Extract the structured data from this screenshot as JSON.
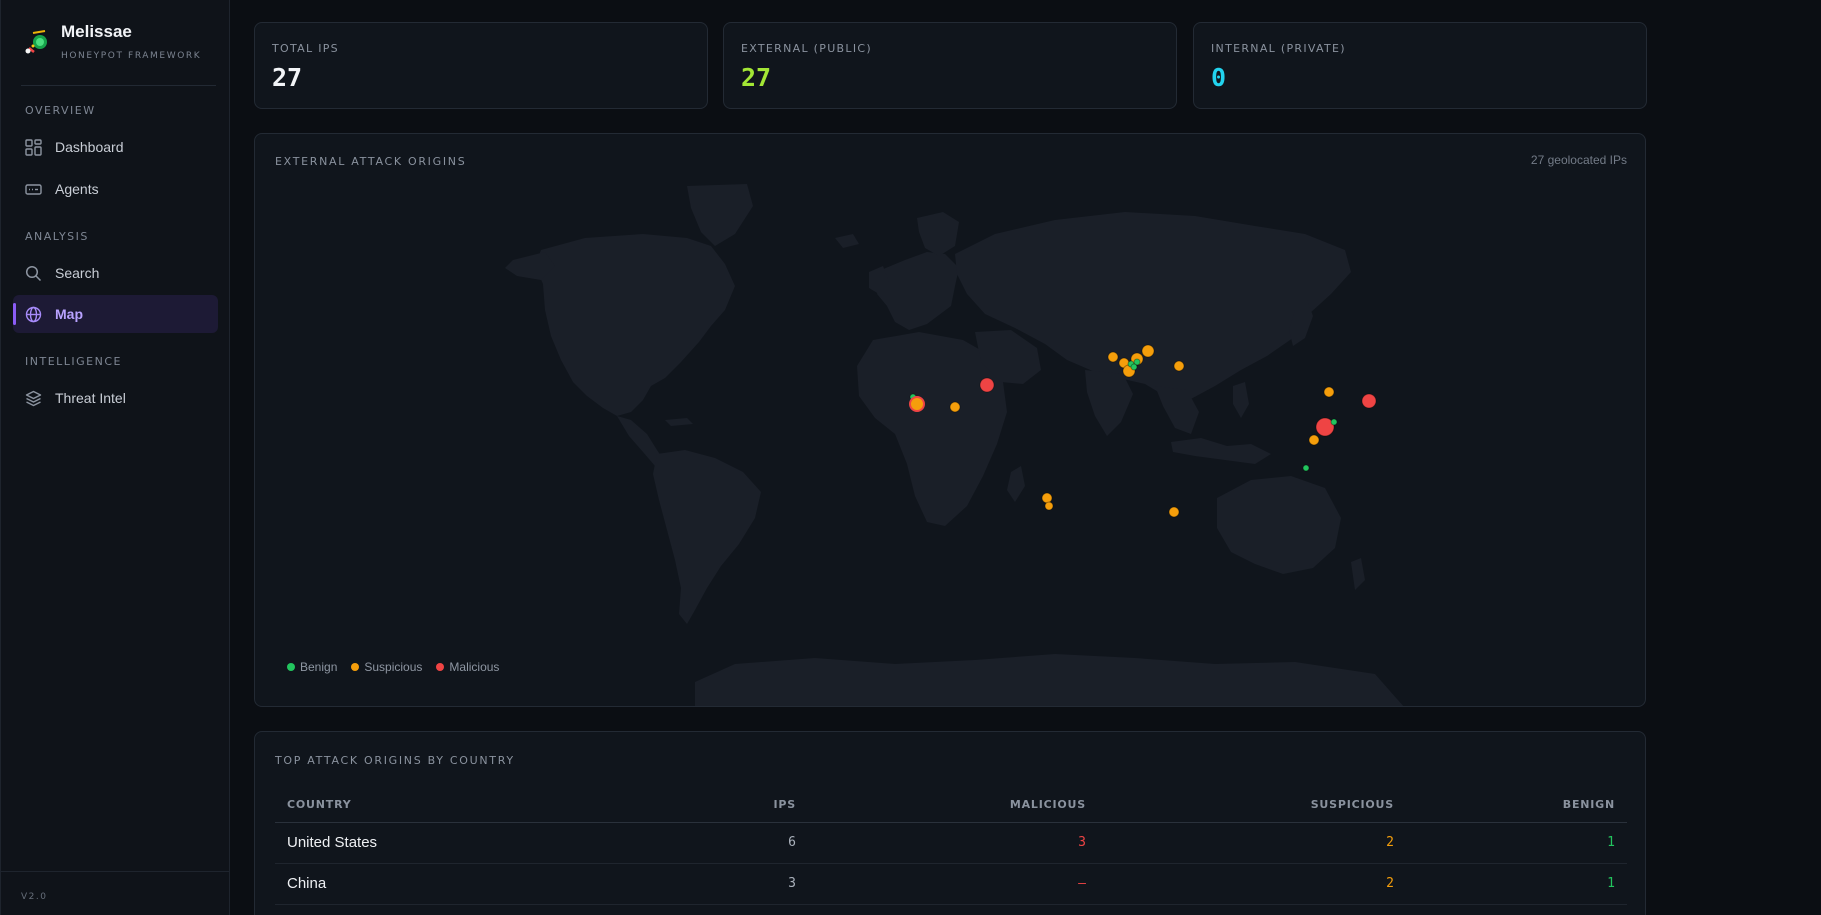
{
  "brand": {
    "name": "Melissae",
    "tagline": "HONEYPOT FRAMEWORK"
  },
  "sidebar": {
    "sections": [
      {
        "label": "OVERVIEW"
      },
      {
        "label": "ANALYSIS"
      },
      {
        "label": "INTELLIGENCE"
      }
    ],
    "items": [
      {
        "label": "Dashboard",
        "icon": "dashboard-icon"
      },
      {
        "label": "Agents",
        "icon": "agents-icon"
      },
      {
        "label": "Search",
        "icon": "search-icon"
      },
      {
        "label": "Map",
        "icon": "globe-icon",
        "active": true
      },
      {
        "label": "Threat Intel",
        "icon": "layers-icon"
      }
    ],
    "version": "V2.0"
  },
  "stats": [
    {
      "label": "TOTAL IPS",
      "value": "27",
      "color": "#f2f4f7"
    },
    {
      "label": "EXTERNAL (PUBLIC)",
      "value": "27",
      "color": "#a3e635"
    },
    {
      "label": "INTERNAL (PRIVATE)",
      "value": "0",
      "color": "#22d3ee"
    }
  ],
  "map": {
    "title": "EXTERNAL ATTACK ORIGINS",
    "geolocated": "27 geolocated IPs",
    "legend": [
      {
        "label": "Benign",
        "color": "#22c55e"
      },
      {
        "label": "Suspicious",
        "color": "#f59e0b"
      },
      {
        "label": "Malicious",
        "color": "#ef4444"
      }
    ]
  },
  "countries": {
    "title": "TOP ATTACK ORIGINS BY COUNTRY",
    "headers": [
      "COUNTRY",
      "IPS",
      "MALICIOUS",
      "SUSPICIOUS",
      "BENIGN"
    ],
    "rows": [
      {
        "country": "United States",
        "ips": "6",
        "malicious": "3",
        "suspicious": "2",
        "benign": "1"
      },
      {
        "country": "China",
        "ips": "3",
        "malicious": "–",
        "suspicious": "2",
        "benign": "1"
      }
    ],
    "colors": {
      "malicious": "#ef4444",
      "suspicious": "#f59e0b",
      "benign": "#22c55e"
    }
  }
}
